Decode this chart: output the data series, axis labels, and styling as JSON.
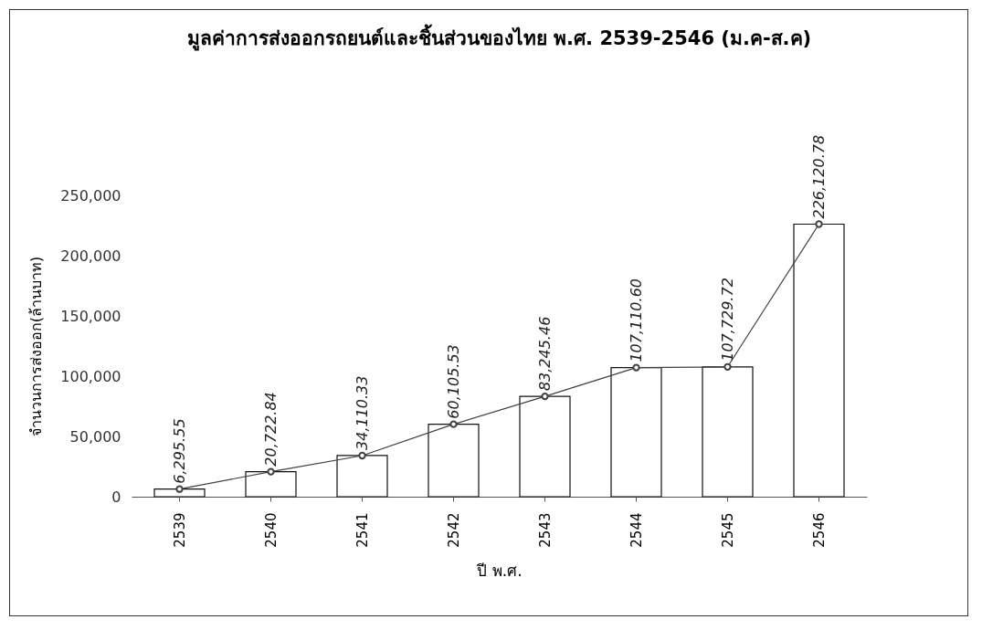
{
  "chart_data": {
    "type": "bar",
    "title": "มูลค่าการส่งออกรถยนต์และชิ้นส่วนของไทย พ.ศ. 2539-2546 (ม.ค-ส.ค)",
    "xlabel": "ปี พ.ศ.",
    "ylabel": "จำนวนการส่งออก(ล้านบาท)",
    "categories": [
      "2539",
      "2540",
      "2541",
      "2542",
      "2543",
      "2544",
      "2545",
      "2546"
    ],
    "series": [
      {
        "color": "#ffffff",
        "values": [
          6295.55,
          20722.84,
          34110.33,
          60105.53,
          83245.46,
          107110.6,
          107729.72,
          226120.78
        ],
        "value_labels": [
          "6,295.55",
          "20,722.84",
          "34,110.33",
          "60,105.53",
          "83,245.46",
          "107,110.60",
          "107,729.72",
          "226,120.78"
        ]
      },
      {
        "type": "line",
        "color": "#404040",
        "values": [
          6295.55,
          20722.84,
          34110.33,
          60105.53,
          83245.46,
          107110.6,
          107729.72,
          226120.78
        ]
      }
    ],
    "ylim": [
      0,
      250000
    ],
    "yticks": [
      {
        "value": 0,
        "label": "0"
      },
      {
        "value": 50000,
        "label": "50,000"
      },
      {
        "value": 100000,
        "label": "100,000"
      },
      {
        "value": 150000,
        "label": "150,000"
      },
      {
        "value": 200000,
        "label": "200,000"
      },
      {
        "value": 250000,
        "label": "250,000"
      }
    ],
    "marker": "circle"
  }
}
